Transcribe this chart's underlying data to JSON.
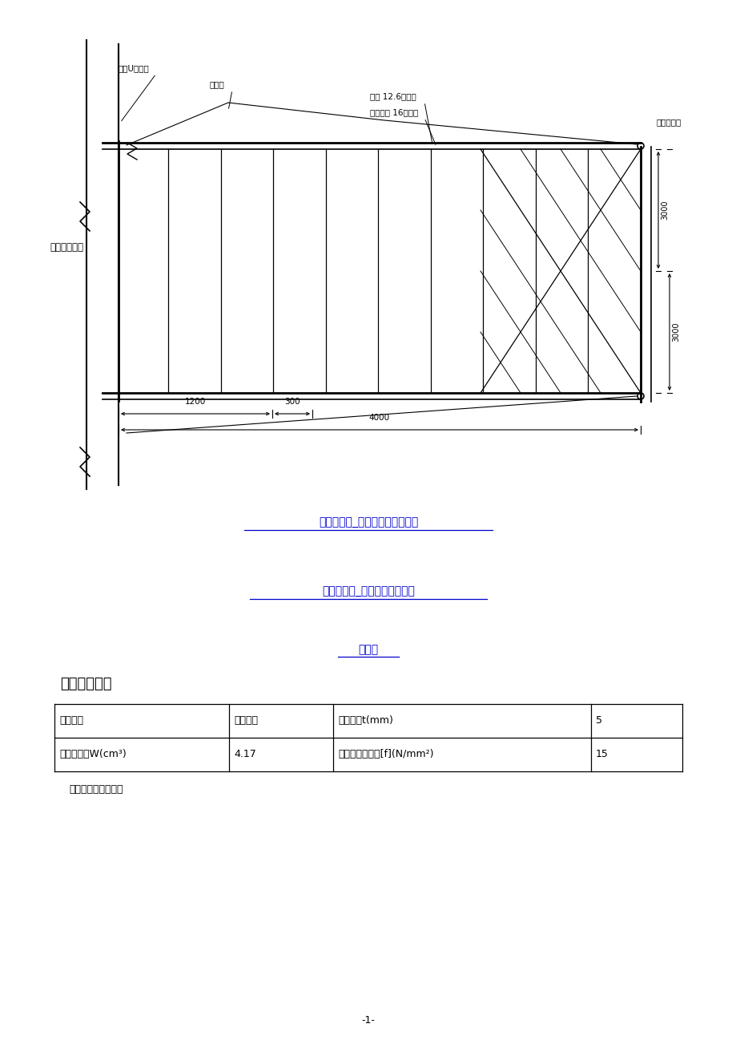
{
  "page_bg": "#ffffff",
  "title1": "型钢悬挑式_卸料平台平面布置图",
  "title2": "型钢悬挑式_卸料平台侧立面图",
  "title3": "节点一",
  "section_title": "四、面板验算",
  "table_row1": [
    "模板类型",
    "木脚手板",
    "模板厚度t(mm)",
    "5"
  ],
  "table_row2": [
    "截面抵抗矩W(cm³)",
    "4.17",
    "抗弯强度设计值[f](N/mm²)",
    "15"
  ],
  "note_text": "面板受力简图如下：",
  "page_num": "-1-",
  "label_pre_rebar": "预埋U形钢筋",
  "label_wire": "钢丝绳",
  "label_secondary": "次梁 12.6号槽钢",
  "label_primary": "悬挑主梁 16号槽钢",
  "label_plank": "铺满脚手板",
  "label_structure": "主体结构楼面",
  "dim_1200": "1200",
  "dim_300": "300",
  "dim_4000": "4000",
  "dim_3000a": "3000",
  "dim_3000b": "3000",
  "line_color": "#000000",
  "title_color": "#0000cd",
  "text_color": "#000000"
}
